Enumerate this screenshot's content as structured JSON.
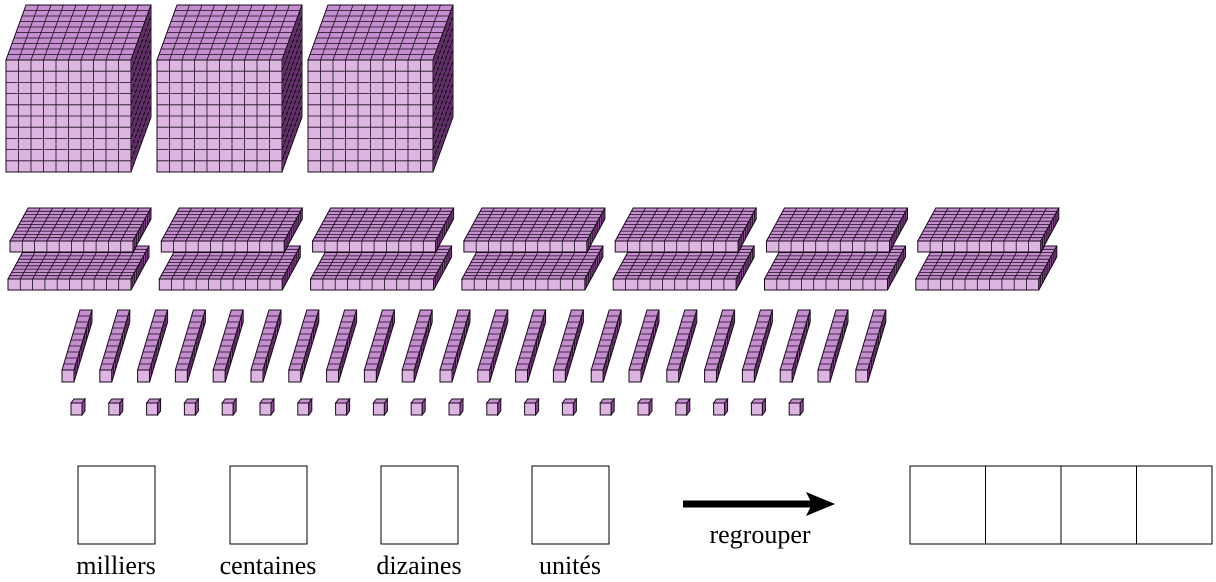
{
  "counts": {
    "thousands": 3,
    "hundreds": 14,
    "tens": 22,
    "units": 20
  },
  "labels": [
    "milliers",
    "centaines",
    "dizaines",
    "unités"
  ],
  "arrow_label": "regrouper"
}
